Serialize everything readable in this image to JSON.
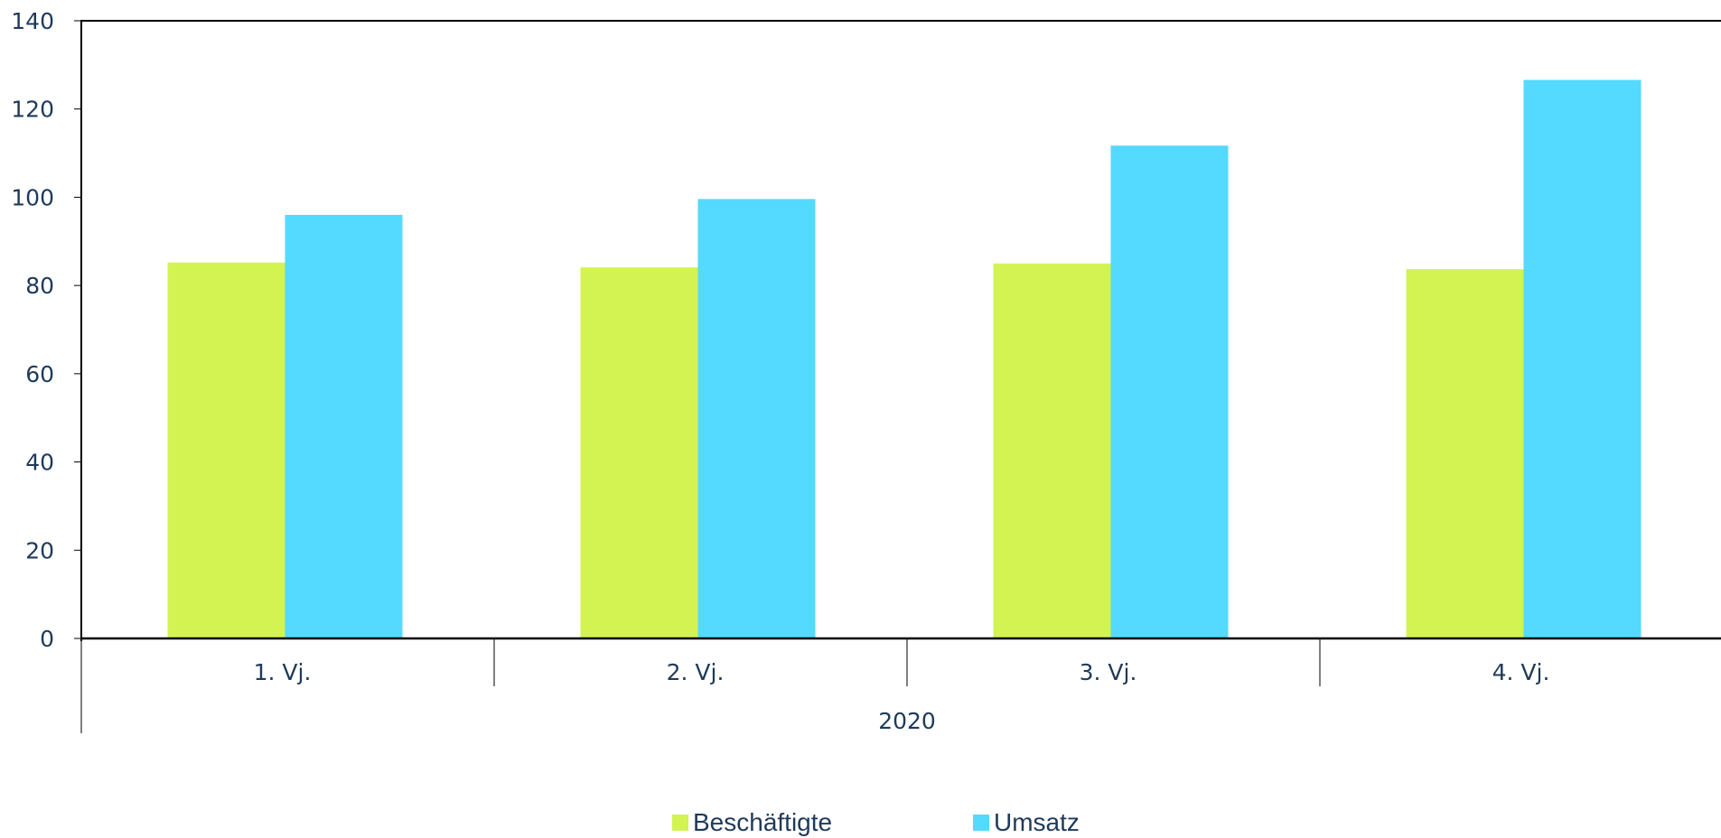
{
  "chart_data": {
    "type": "bar",
    "categories": [
      "1. Vj.",
      "2. Vj.",
      "3. Vj.",
      "4. Vj."
    ],
    "group_label": "2020",
    "series": [
      {
        "name": "Beschäftigte",
        "color": "#d3f353",
        "values": [
          85.2,
          84.1,
          85.0,
          83.7
        ]
      },
      {
        "name": "Umsatz",
        "color": "#53dafe",
        "values": [
          96.0,
          99.6,
          111.7,
          126.6
        ]
      }
    ],
    "y_ticks": [
      "0",
      "20",
      "40",
      "60",
      "80",
      "100",
      "120",
      "140"
    ],
    "ylim": [
      0,
      140
    ],
    "grid": false,
    "legend_position": "bottom-center",
    "title": "",
    "xlabel": "",
    "ylabel": ""
  }
}
